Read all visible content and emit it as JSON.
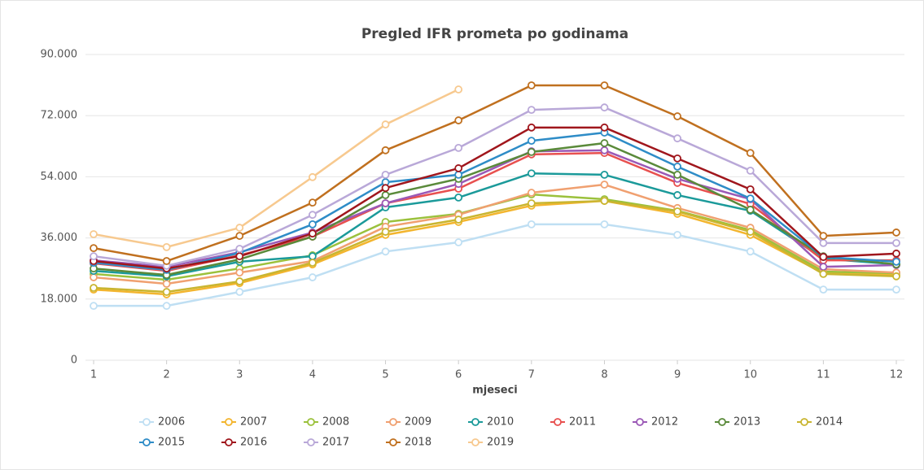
{
  "chart_data": {
    "type": "line",
    "title": "Pregled IFR prometa po godinama",
    "x_label": "mjeseci",
    "categories": [
      "1",
      "2",
      "3",
      "4",
      "5",
      "6",
      "7",
      "8",
      "9",
      "10",
      "11",
      "12"
    ],
    "ylim": [
      0,
      90000
    ],
    "yticks": [
      0,
      {
        "value": 18000,
        "label": "18.000"
      },
      {
        "value": 36000,
        "label": "36.000"
      },
      {
        "value": 54000,
        "label": "54.000"
      },
      {
        "value": 72000,
        "label": "72.000"
      },
      {
        "value": 90000,
        "label": "90.000"
      }
    ],
    "grid": true,
    "legend": "bottom",
    "series": [
      {
        "name": "2006",
        "color": "#bfdff3",
        "values": [
          16000,
          16000,
          20100,
          24400,
          32000,
          34700,
          40000,
          40000,
          36900,
          32000,
          20800,
          20800
        ]
      },
      {
        "name": "2007",
        "color": "#f3b52e",
        "values": [
          20800,
          19400,
          22700,
          28200,
          36900,
          40700,
          45500,
          46900,
          43100,
          36900,
          25600,
          25100
        ]
      },
      {
        "name": "2008",
        "color": "#9bc13c",
        "values": [
          25400,
          23700,
          27000,
          30900,
          40700,
          43100,
          48800,
          47400,
          44000,
          38300,
          26100,
          25600
        ]
      },
      {
        "name": "2009",
        "color": "#f0a070",
        "values": [
          24400,
          22500,
          25800,
          29200,
          39300,
          42800,
          49300,
          51700,
          44800,
          39000,
          26800,
          25800
        ]
      },
      {
        "name": "2010",
        "color": "#1b9a9a",
        "values": [
          26300,
          24700,
          29000,
          30600,
          45000,
          47900,
          55000,
          54600,
          48600,
          44000,
          29900,
          28200
        ]
      },
      {
        "name": "2011",
        "color": "#e8504f",
        "values": [
          28500,
          26300,
          30900,
          36400,
          46200,
          50500,
          60600,
          61000,
          52200,
          46000,
          29400,
          29400
        ]
      },
      {
        "name": "2012",
        "color": "#9b59b6",
        "values": [
          29400,
          27500,
          31800,
          37600,
          46200,
          51900,
          61500,
          61800,
          53400,
          47400,
          27500,
          28000
        ]
      },
      {
        "name": "2013",
        "color": "#5a8a3a",
        "values": [
          27000,
          25100,
          29700,
          36400,
          48600,
          53400,
          61300,
          63900,
          54600,
          44300,
          30600,
          28200
        ]
      },
      {
        "name": "2014",
        "color": "#c9b530",
        "values": [
          21300,
          20100,
          23200,
          28700,
          37800,
          41400,
          46200,
          46900,
          43800,
          37800,
          25400,
          24700
        ]
      },
      {
        "name": "2015",
        "color": "#2e8cc7",
        "values": [
          28700,
          26600,
          31600,
          40000,
          52400,
          54600,
          64600,
          67000,
          57000,
          47600,
          30400,
          29000
        ]
      },
      {
        "name": "2016",
        "color": "#a0161c",
        "values": [
          29200,
          27000,
          30600,
          37300,
          50700,
          56500,
          68500,
          68500,
          59400,
          50300,
          30400,
          31400
        ]
      },
      {
        "name": "2017",
        "color": "#b9a8d8",
        "values": [
          30600,
          27800,
          32800,
          42800,
          54600,
          62500,
          73700,
          74400,
          65300,
          55800,
          34500,
          34500
        ]
      },
      {
        "name": "2018",
        "color": "#c0701f",
        "values": [
          33000,
          29200,
          36600,
          46400,
          61800,
          70600,
          80900,
          80900,
          71800,
          61000,
          36600,
          37600
        ]
      },
      {
        "name": "2019",
        "color": "#f7c98f",
        "values": [
          37100,
          33300,
          39000,
          53900,
          69400,
          79700,
          null,
          null,
          null,
          null,
          null,
          null
        ]
      }
    ]
  }
}
